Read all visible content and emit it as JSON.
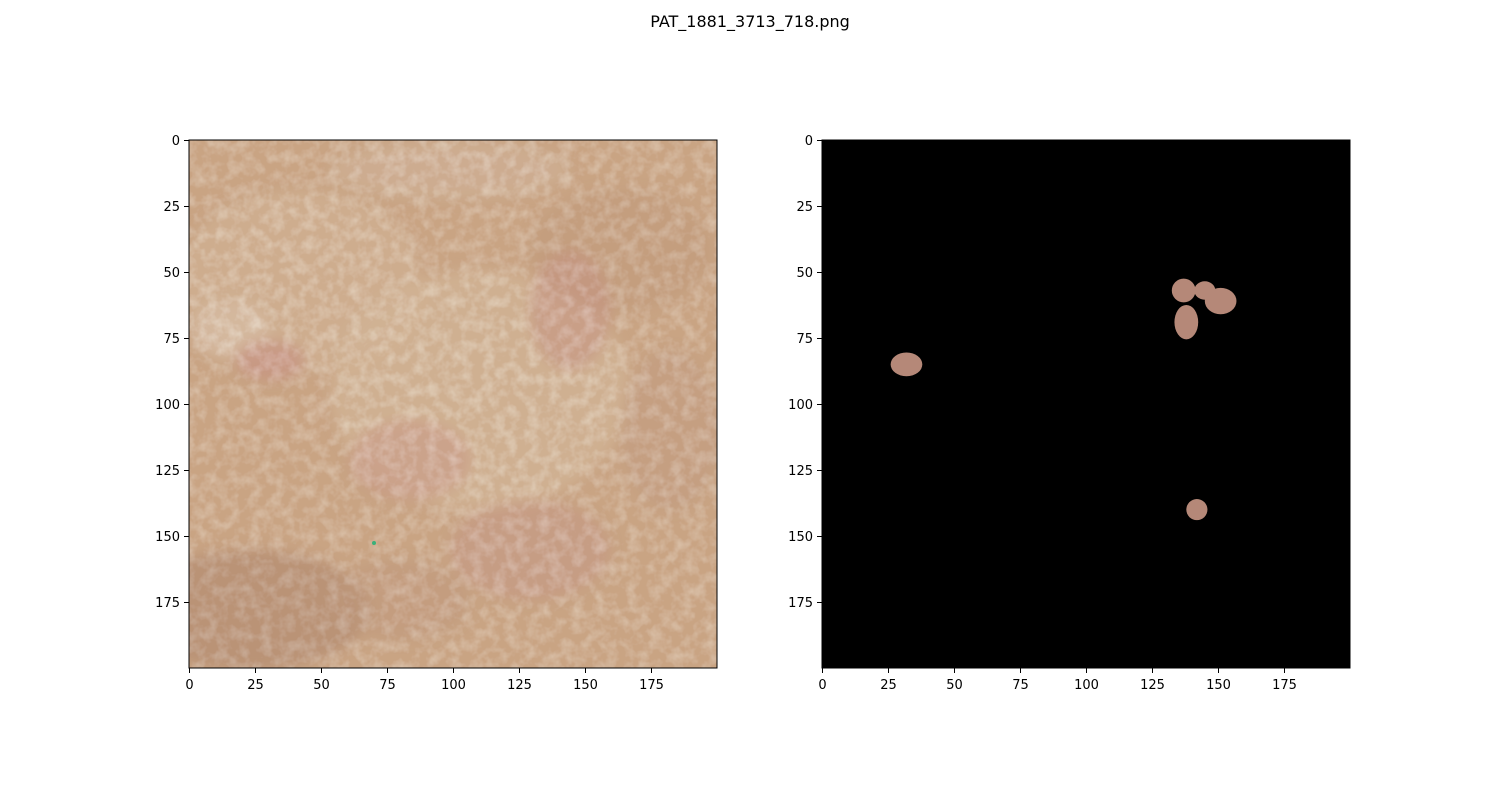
{
  "figure": {
    "title": "PAT_1881_3713_718.png"
  },
  "panels": [
    {
      "name": "original-skin-image",
      "image_kind": "dermatoscopic skin photo",
      "x_ticks": [
        "0",
        "25",
        "50",
        "75",
        "100",
        "125",
        "150",
        "175"
      ],
      "y_ticks": [
        "0",
        "25",
        "50",
        "75",
        "100",
        "125",
        "150",
        "175"
      ],
      "data_range": [
        0,
        200
      ]
    },
    {
      "name": "segmentation-mask-image",
      "image_kind": "masked lesion regions on black background",
      "x_ticks": [
        "0",
        "25",
        "50",
        "75",
        "100",
        "125",
        "150",
        "175"
      ],
      "y_ticks": [
        "0",
        "25",
        "50",
        "75",
        "100",
        "125",
        "150",
        "175"
      ],
      "data_range": [
        0,
        200
      ],
      "lesions": [
        {
          "cx": 32,
          "cy": 85,
          "rx": 6,
          "ry": 4.5
        },
        {
          "cx": 137,
          "cy": 57,
          "rx": 4.5,
          "ry": 4.5
        },
        {
          "cx": 145,
          "cy": 57,
          "rx": 4,
          "ry": 3.5
        },
        {
          "cx": 151,
          "cy": 61,
          "rx": 6,
          "ry": 5
        },
        {
          "cx": 138,
          "cy": 69,
          "rx": 4.5,
          "ry": 6.5
        },
        {
          "cx": 142,
          "cy": 140,
          "rx": 4,
          "ry": 4
        }
      ]
    }
  ],
  "colors": {
    "skin_base": "#c9a484",
    "skin_light": "#dcc4a8",
    "skin_pink": "#c98a8a",
    "skin_dark": "#9e7458",
    "lesion": "#b58878",
    "mask_bg": "#000000"
  }
}
